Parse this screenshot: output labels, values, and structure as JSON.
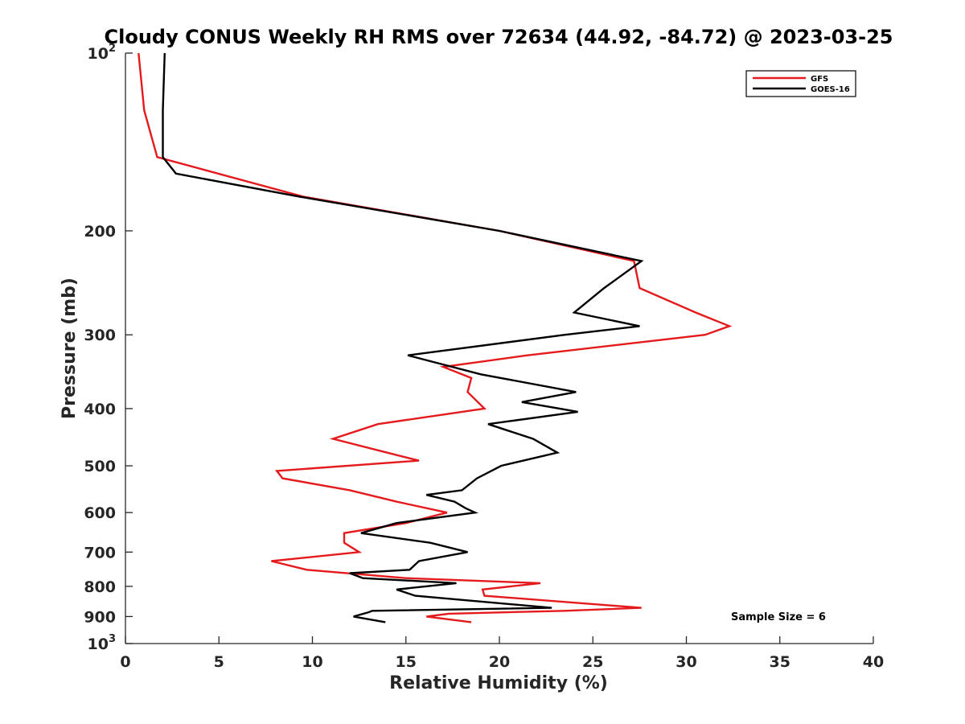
{
  "chart_data": {
    "type": "line",
    "title": "Cloudy CONUS Weekly RH RMS over 72634 (44.92, -84.72) @ 2023-03-25",
    "xlabel": "Relative Humidity (%)",
    "ylabel": "Pressure (mb)",
    "xlim": [
      0,
      40
    ],
    "ylim": [
      100,
      1000
    ],
    "y_scale": "log",
    "y_reversed": true,
    "grid": false,
    "legend_position": "top-right",
    "x_ticks": [
      "0",
      "5",
      "10",
      "15",
      "20",
      "25",
      "30",
      "35",
      "40"
    ],
    "y_ticks": [
      {
        "value": 100,
        "base": "10",
        "exp": "2"
      },
      {
        "value": 200,
        "label": "200"
      },
      {
        "value": 300,
        "label": "300"
      },
      {
        "value": 400,
        "label": "400"
      },
      {
        "value": 500,
        "label": "500"
      },
      {
        "value": 600,
        "label": "600"
      },
      {
        "value": 700,
        "label": "700"
      },
      {
        "value": 800,
        "label": "800"
      },
      {
        "value": 900,
        "label": "900"
      },
      {
        "value": 1000,
        "base": "10",
        "exp": "3"
      }
    ],
    "annotation": "Sample Size = 6",
    "series": [
      {
        "name": "GFS",
        "color": "#e41a1c",
        "points": [
          [
            0.7,
            100
          ],
          [
            1.0,
            125
          ],
          [
            1.7,
            150
          ],
          [
            9.5,
            175
          ],
          [
            20.0,
            200
          ],
          [
            27.2,
            225
          ],
          [
            27.5,
            250
          ],
          [
            30.5,
            275
          ],
          [
            32.3,
            290
          ],
          [
            31.0,
            300
          ],
          [
            21.5,
            325
          ],
          [
            17.0,
            340
          ],
          [
            18.5,
            355
          ],
          [
            18.3,
            375
          ],
          [
            19.2,
            400
          ],
          [
            13.5,
            425
          ],
          [
            11.1,
            450
          ],
          [
            14.0,
            475
          ],
          [
            15.7,
            490
          ],
          [
            8.1,
            510
          ],
          [
            8.4,
            525
          ],
          [
            12.0,
            550
          ],
          [
            14.5,
            575
          ],
          [
            17.2,
            600
          ],
          [
            15.0,
            625
          ],
          [
            11.7,
            650
          ],
          [
            11.7,
            675
          ],
          [
            12.5,
            700
          ],
          [
            7.8,
            725
          ],
          [
            9.7,
            750
          ],
          [
            15.0,
            775
          ],
          [
            22.2,
            790
          ],
          [
            19.1,
            810
          ],
          [
            19.2,
            830
          ],
          [
            27.6,
            870
          ],
          [
            23.5,
            880
          ],
          [
            17.3,
            890
          ],
          [
            16.1,
            900
          ],
          [
            18.5,
            920
          ]
        ]
      },
      {
        "name": "GOES-16",
        "color": "#000000",
        "points": [
          [
            2.1,
            100
          ],
          [
            2.0,
            125
          ],
          [
            2.0,
            150
          ],
          [
            2.7,
            160
          ],
          [
            9.3,
            175
          ],
          [
            20.0,
            200
          ],
          [
            27.6,
            225
          ],
          [
            25.6,
            250
          ],
          [
            24.0,
            275
          ],
          [
            27.5,
            290
          ],
          [
            23.5,
            300
          ],
          [
            15.1,
            325
          ],
          [
            19.0,
            350
          ],
          [
            24.1,
            375
          ],
          [
            21.2,
            390
          ],
          [
            24.2,
            405
          ],
          [
            19.4,
            425
          ],
          [
            21.8,
            450
          ],
          [
            23.1,
            475
          ],
          [
            20.1,
            500
          ],
          [
            18.8,
            525
          ],
          [
            18.0,
            550
          ],
          [
            16.1,
            560
          ],
          [
            17.6,
            575
          ],
          [
            18.2,
            590
          ],
          [
            18.7,
            600
          ],
          [
            14.5,
            625
          ],
          [
            12.6,
            650
          ],
          [
            16.3,
            675
          ],
          [
            18.3,
            700
          ],
          [
            15.7,
            725
          ],
          [
            15.2,
            750
          ],
          [
            12.0,
            760
          ],
          [
            12.7,
            775
          ],
          [
            17.7,
            790
          ],
          [
            14.5,
            810
          ],
          [
            15.5,
            830
          ],
          [
            22.8,
            870
          ],
          [
            13.2,
            880
          ],
          [
            13.0,
            885
          ],
          [
            12.2,
            900
          ],
          [
            13.9,
            920
          ]
        ]
      }
    ]
  }
}
